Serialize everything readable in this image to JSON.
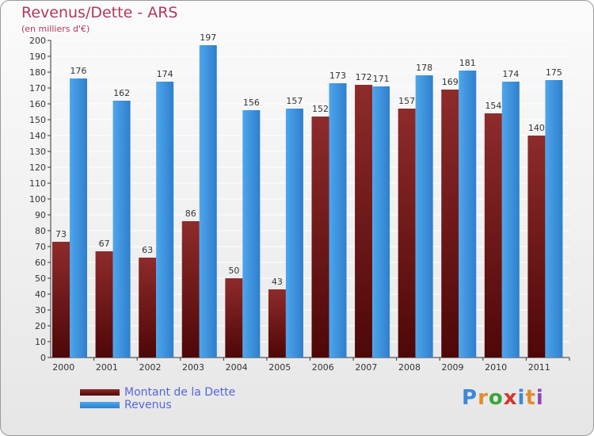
{
  "chart_data": {
    "type": "bar",
    "title": "Revenus/Dette - ARS",
    "subtitle": "(en milliers d'€)",
    "categories": [
      "2000",
      "2001",
      "2002",
      "2003",
      "2004",
      "2005",
      "2006",
      "2007",
      "2008",
      "2009",
      "2010",
      "2011"
    ],
    "series": [
      {
        "name": "Montant de la Dette",
        "values": [
          73,
          67,
          63,
          86,
          50,
          43,
          152,
          172,
          157,
          169,
          154,
          140
        ],
        "color": "#7a1a1a"
      },
      {
        "name": "Revenus",
        "values": [
          176,
          162,
          174,
          197,
          156,
          157,
          173,
          171,
          178,
          181,
          174,
          175
        ],
        "color": "#3d8fd8"
      }
    ],
    "ylim": [
      0,
      200
    ],
    "y_ticks": [
      0,
      10,
      20,
      30,
      40,
      50,
      60,
      70,
      80,
      90,
      100,
      110,
      120,
      130,
      140,
      150,
      160,
      170,
      180,
      190,
      200
    ],
    "grid": true,
    "legend_position": "bottom-left"
  },
  "logo": {
    "text": "Proxiti"
  }
}
